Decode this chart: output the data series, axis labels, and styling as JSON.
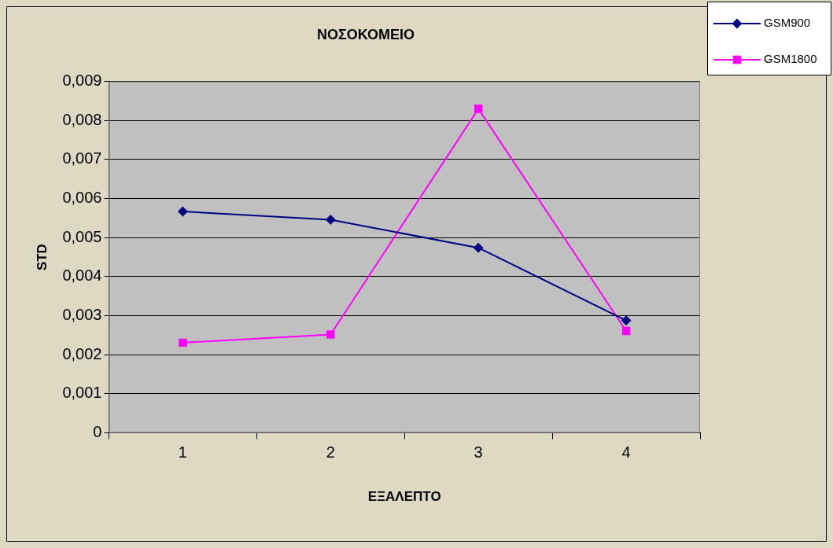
{
  "chart_data": {
    "type": "line",
    "title": "ΝΟΣΟΚΟΜΕΙΟ",
    "xlabel": "ΕΞΑΛΕΠΤΟ",
    "ylabel": "STD",
    "categories": [
      "1",
      "2",
      "3",
      "4"
    ],
    "series": [
      {
        "name": "GSM900",
        "color": "#000080",
        "marker": "diamond",
        "values": [
          0.00567,
          0.00546,
          0.00474,
          0.00288
        ]
      },
      {
        "name": "GSM1800",
        "color": "#ff00ff",
        "marker": "square",
        "values": [
          0.00231,
          0.00252,
          0.0083,
          0.00261
        ]
      }
    ],
    "ylim": [
      0,
      0.009
    ],
    "yticks": [
      0,
      {
        "value": 0.001,
        "label": "0,001"
      },
      {
        "value": 0.002,
        "label": "0,002"
      },
      {
        "value": 0.003,
        "label": "0,003"
      },
      {
        "value": 0.004,
        "label": "0,004"
      },
      {
        "value": 0.005,
        "label": "0,005"
      },
      {
        "value": 0.006,
        "label": "0,006"
      },
      {
        "value": 0.007,
        "label": "0,007"
      },
      {
        "value": 0.008,
        "label": "0,008"
      },
      {
        "value": 0.009,
        "label": "0,009"
      }
    ],
    "grid": "y",
    "legend": "top right",
    "line_style": "solid"
  }
}
